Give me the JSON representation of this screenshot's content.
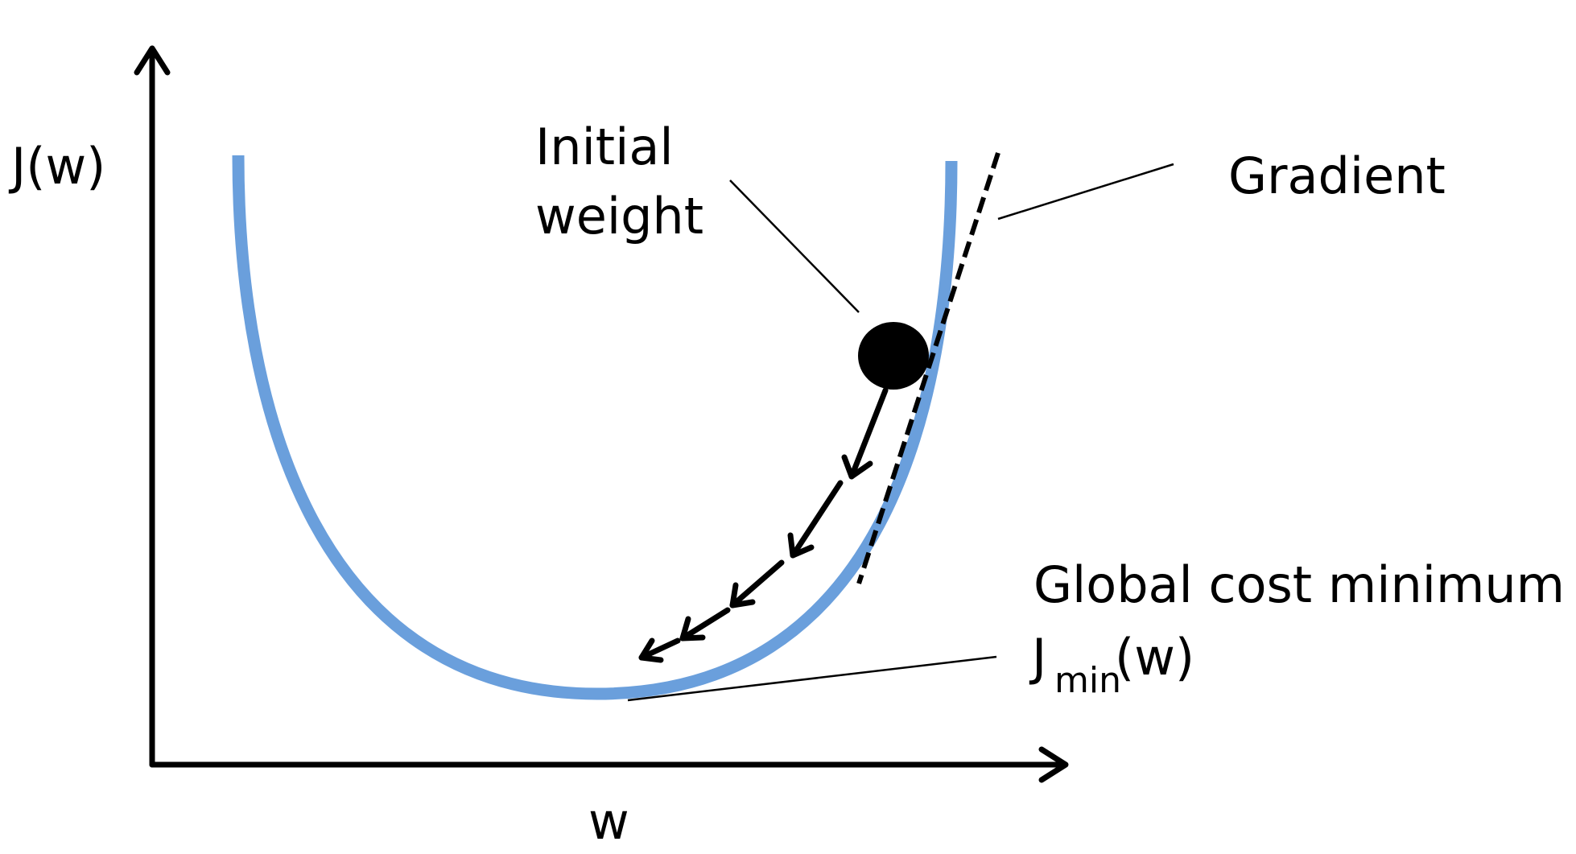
{
  "diagram": {
    "labels": {
      "y_axis": "J(w)",
      "x_axis": "w",
      "initial_weight_line1": "Initial",
      "initial_weight_line2": "weight",
      "gradient": "Gradient",
      "global_cost_minimum": "Global cost minimum",
      "jmin_base": "J",
      "jmin_subscript": "min",
      "jmin_suffix": "(w)"
    },
    "colors": {
      "curve": "#6a9fdc",
      "ink": "#000000",
      "background": "#ffffff"
    }
  }
}
